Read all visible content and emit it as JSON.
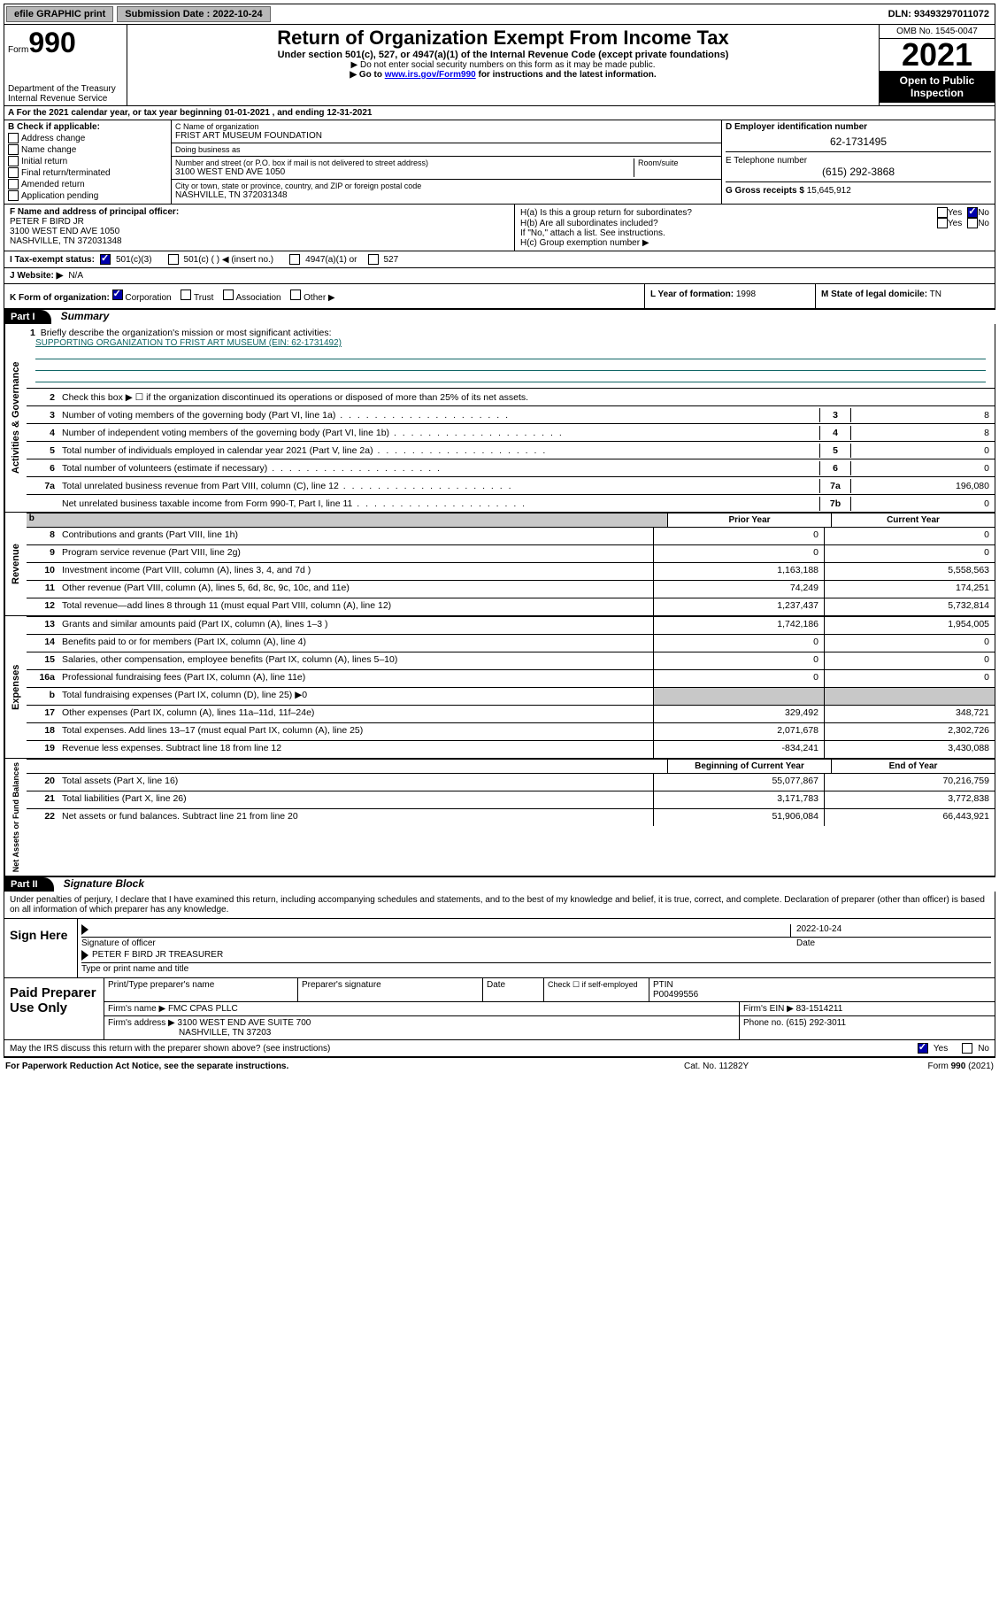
{
  "topbar": {
    "efile": "efile GRAPHIC print",
    "submission_label": "Submission Date : 2022-10-24",
    "dln_label": "DLN: 93493297011072"
  },
  "header": {
    "form_label": "Form",
    "form_num": "990",
    "dept": "Department of the Treasury",
    "irs": "Internal Revenue Service",
    "title": "Return of Organization Exempt From Income Tax",
    "sub": "Under section 501(c), 527, or 4947(a)(1) of the Internal Revenue Code (except private foundations)",
    "note1": "▶ Do not enter social security numbers on this form as it may be made public.",
    "note2_pre": "▶ Go to ",
    "note2_link": "www.irs.gov/Form990",
    "note2_post": " for instructions and the latest information.",
    "omb": "OMB No. 1545-0047",
    "year": "2021",
    "open": "Open to Public Inspection"
  },
  "rowA": "A For the 2021 calendar year, or tax year beginning 01-01-2021   , and ending 12-31-2021",
  "colB": {
    "hdr": "B Check if applicable:",
    "items": [
      "Address change",
      "Name change",
      "Initial return",
      "Final return/terminated",
      "Amended return",
      "Application pending"
    ]
  },
  "colC": {
    "name_lbl": "C Name of organization",
    "name": "FRIST ART MUSEUM FOUNDATION",
    "dba_lbl": "Doing business as",
    "dba": "",
    "addr_lbl": "Number and street (or P.O. box if mail is not delivered to street address)",
    "room_lbl": "Room/suite",
    "addr": "3100 WEST END AVE 1050",
    "city_lbl": "City or town, state or province, country, and ZIP or foreign postal code",
    "city": "NASHVILLE, TN  372031348"
  },
  "colD": {
    "ein_lbl": "D Employer identification number",
    "ein": "62-1731495",
    "tel_lbl": "E Telephone number",
    "tel": "(615) 292-3868",
    "gross_lbl": "G Gross receipts $",
    "gross": "15,645,912"
  },
  "rowF": {
    "left_lbl": "F Name and address of principal officer:",
    "left_val": "PETER F BIRD JR\n3100 WEST END AVE 1050\nNASHVILLE, TN  372031348",
    "ha": "H(a)  Is this a group return for subordinates?",
    "hb": "H(b)  Are all subordinates included?",
    "hb_note": "If \"No,\" attach a list. See instructions.",
    "hc": "H(c)  Group exemption number ▶",
    "yes": "Yes",
    "no": "No"
  },
  "rowI": {
    "lbl": "I   Tax-exempt status:",
    "o1": "501(c)(3)",
    "o2": "501(c) (   ) ◀ (insert no.)",
    "o3": "4947(a)(1) or",
    "o4": "527"
  },
  "rowJ": {
    "lbl": "J   Website: ▶",
    "val": "N/A"
  },
  "rowK": {
    "lbl": "K Form of organization:",
    "opts": [
      "Corporation",
      "Trust",
      "Association",
      "Other ▶"
    ],
    "yr_lbl": "L Year of formation:",
    "yr": "1998",
    "dom_lbl": "M State of legal domicile:",
    "dom": "TN"
  },
  "part1": {
    "hdr": "Part I",
    "title": "Summary"
  },
  "actgov": {
    "side": "Activities & Governance",
    "l1": "Briefly describe the organization's mission or most significant activities:",
    "l1v": "SUPPORTING ORGANIZATION TO FRIST ART MUSEUM (EIN: 62-1731492)",
    "l2": "Check this box ▶ ☐  if the organization discontinued its operations or disposed of more than 25% of its net assets.",
    "l3": "Number of voting members of the governing body (Part VI, line 1a)",
    "l3v": "8",
    "l4": "Number of independent voting members of the governing body (Part VI, line 1b)",
    "l4v": "8",
    "l5": "Total number of individuals employed in calendar year 2021 (Part V, line 2a)",
    "l5v": "0",
    "l6": "Total number of volunteers (estimate if necessary)",
    "l6v": "0",
    "l7a": "Total unrelated business revenue from Part VIII, column (C), line 12",
    "l7av": "196,080",
    "l7b": "Net unrelated business taxable income from Form 990-T, Part I, line 11",
    "l7bv": "0"
  },
  "twoColHdr": {
    "c1": "Prior Year",
    "c2": "Current Year"
  },
  "revenue": {
    "side": "Revenue",
    "rows": [
      {
        "n": "8",
        "t": "Contributions and grants (Part VIII, line 1h)",
        "p": "0",
        "c": "0"
      },
      {
        "n": "9",
        "t": "Program service revenue (Part VIII, line 2g)",
        "p": "0",
        "c": "0"
      },
      {
        "n": "10",
        "t": "Investment income (Part VIII, column (A), lines 3, 4, and 7d )",
        "p": "1,163,188",
        "c": "5,558,563"
      },
      {
        "n": "11",
        "t": "Other revenue (Part VIII, column (A), lines 5, 6d, 8c, 9c, 10c, and 11e)",
        "p": "74,249",
        "c": "174,251"
      },
      {
        "n": "12",
        "t": "Total revenue—add lines 8 through 11 (must equal Part VIII, column (A), line 12)",
        "p": "1,237,437",
        "c": "5,732,814"
      }
    ]
  },
  "expenses": {
    "side": "Expenses",
    "rows": [
      {
        "n": "13",
        "t": "Grants and similar amounts paid (Part IX, column (A), lines 1–3 )",
        "p": "1,742,186",
        "c": "1,954,005"
      },
      {
        "n": "14",
        "t": "Benefits paid to or for members (Part IX, column (A), line 4)",
        "p": "0",
        "c": "0"
      },
      {
        "n": "15",
        "t": "Salaries, other compensation, employee benefits (Part IX, column (A), lines 5–10)",
        "p": "0",
        "c": "0"
      },
      {
        "n": "16a",
        "t": "Professional fundraising fees (Part IX, column (A), line 11e)",
        "p": "0",
        "c": "0"
      },
      {
        "n": "b",
        "t": "Total fundraising expenses (Part IX, column (D), line 25) ▶0",
        "p": "",
        "c": "",
        "shade": true
      },
      {
        "n": "17",
        "t": "Other expenses (Part IX, column (A), lines 11a–11d, 11f–24e)",
        "p": "329,492",
        "c": "348,721"
      },
      {
        "n": "18",
        "t": "Total expenses. Add lines 13–17 (must equal Part IX, column (A), line 25)",
        "p": "2,071,678",
        "c": "2,302,726"
      },
      {
        "n": "19",
        "t": "Revenue less expenses. Subtract line 18 from line 12",
        "p": "-834,241",
        "c": "3,430,088"
      }
    ]
  },
  "netHdr": {
    "c1": "Beginning of Current Year",
    "c2": "End of Year"
  },
  "net": {
    "side": "Net Assets or Fund Balances",
    "rows": [
      {
        "n": "20",
        "t": "Total assets (Part X, line 16)",
        "p": "55,077,867",
        "c": "70,216,759"
      },
      {
        "n": "21",
        "t": "Total liabilities (Part X, line 26)",
        "p": "3,171,783",
        "c": "3,772,838"
      },
      {
        "n": "22",
        "t": "Net assets or fund balances. Subtract line 21 from line 20",
        "p": "51,906,084",
        "c": "66,443,921"
      }
    ]
  },
  "part2": {
    "hdr": "Part II",
    "title": "Signature Block"
  },
  "sigDecl": "Under penalties of perjury, I declare that I have examined this return, including accompanying schedules and statements, and to the best of my knowledge and belief, it is true, correct, and complete. Declaration of preparer (other than officer) is based on all information of which preparer has any knowledge.",
  "sign": {
    "here": "Sign Here",
    "sig_lbl": "Signature of officer",
    "date": "2022-10-24",
    "date_lbl": "Date",
    "name": "PETER F BIRD JR TREASURER",
    "name_lbl": "Type or print name and title"
  },
  "prep": {
    "left": "Paid Preparer Use Only",
    "h1": "Print/Type preparer's name",
    "h2": "Preparer's signature",
    "h3": "Date",
    "h4a": "Check ☐ if self-employed",
    "h4b": "PTIN",
    "ptin": "P00499556",
    "firm_lbl": "Firm's name    ▶",
    "firm": "FMC CPAS PLLC",
    "fein_lbl": "Firm's EIN ▶",
    "fein": "83-1514211",
    "addr_lbl": "Firm's address ▶",
    "addr1": "3100 WEST END AVE SUITE 700",
    "addr2": "NASHVILLE, TN  37203",
    "phone_lbl": "Phone no.",
    "phone": "(615) 292-3011"
  },
  "discuss": {
    "txt": "May the IRS discuss this return with the preparer shown above? (see instructions)",
    "yes": "Yes",
    "no": "No"
  },
  "footer": {
    "l": "For Paperwork Reduction Act Notice, see the separate instructions.",
    "m": "Cat. No. 11282Y",
    "r": "Form 990 (2021)"
  }
}
